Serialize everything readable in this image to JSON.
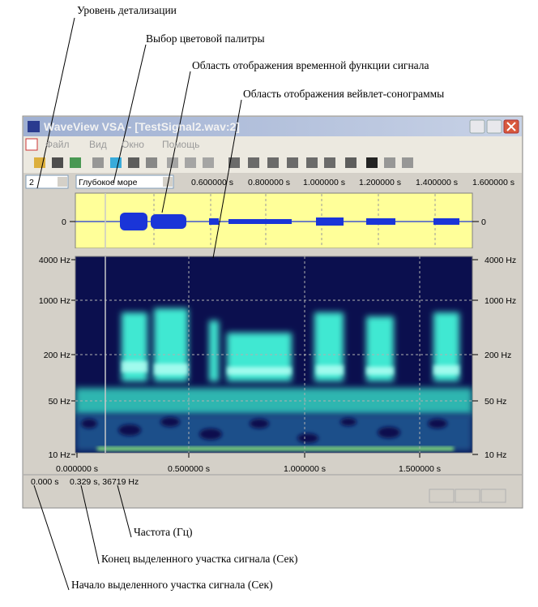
{
  "annotations": [
    "Уровень детализации",
    "Выбор цветовой палитры",
    "Область отображения временной функции сигнала",
    "Область отображения вейвлет-сонограммы",
    "Частота (Гц)",
    "Конец выделенного участка сигнала (Сек)",
    "Начало выделенного участка сигнала (Сек)"
  ],
  "window": {
    "title": "WaveView VSA - [TestSignal2.wav:2]",
    "menu": [
      "Файл",
      "Вид",
      "Окно",
      "Помощь"
    ],
    "detail_level": "2",
    "palette": "Глубокое море",
    "top_ruler": [
      "0.600000 s",
      "0.800000 s",
      "1.000000 s",
      "1.200000 s",
      "1.400000 s",
      "1.600000 s"
    ],
    "waveform_labels": [
      "0",
      "0"
    ],
    "freq_labels": [
      "4000 Hz",
      "1000 Hz",
      "200 Hz",
      "50 Hz",
      "10 Hz"
    ],
    "time_labels": [
      "0.000000 s",
      "0.500000 s",
      "1.000000 s",
      "1.500000 s"
    ],
    "status": [
      "0.000 s",
      "0.329 s, 36719 Hz"
    ]
  }
}
